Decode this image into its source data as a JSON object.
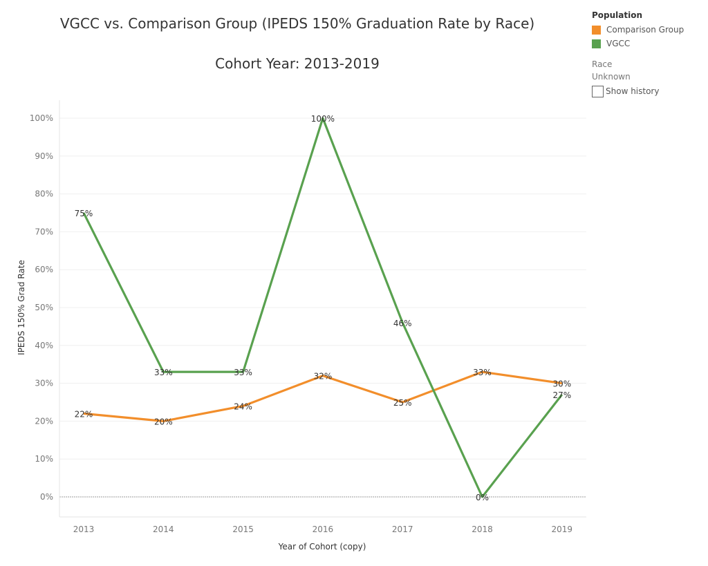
{
  "title": "VGCC vs. Comparison Group (IPEDS 150% Graduation Rate by Race)",
  "subtitle": "Cohort Year: 2013-2019",
  "legend": {
    "title": "Population",
    "items": [
      {
        "label": "Comparison Group",
        "color": "#f28e2b"
      },
      {
        "label": "VGCC",
        "color": "#59a14f"
      }
    ]
  },
  "filter": {
    "label": "Race",
    "value": "Unknown",
    "show_history_label": "Show history"
  },
  "chart_data": {
    "type": "line",
    "title": "VGCC vs. Comparison Group (IPEDS 150% Graduation Rate by Race)",
    "subtitle": "Cohort Year: 2013-2019",
    "xlabel": "Year of Cohort (copy)",
    "ylabel": "IPEDS 150%  Grad Rate",
    "categories": [
      "2013",
      "2014",
      "2015",
      "2016",
      "2017",
      "2018",
      "2019"
    ],
    "ylim": [
      0,
      100
    ],
    "yticks": [
      0,
      10,
      20,
      30,
      40,
      50,
      60,
      70,
      80,
      90,
      100
    ],
    "ytick_labels": [
      "0%",
      "10%",
      "20%",
      "30%",
      "40%",
      "50%",
      "60%",
      "70%",
      "80%",
      "90%",
      "100%"
    ],
    "grid": true,
    "legend_position": "top-right",
    "series": [
      {
        "name": "Comparison Group",
        "color": "#f28e2b",
        "values": [
          22,
          20,
          24,
          32,
          25,
          33,
          30
        ],
        "labels": [
          "22%",
          "20%",
          "24%",
          "32%",
          "25%",
          "33%",
          "30%"
        ]
      },
      {
        "name": "VGCC",
        "color": "#59a14f",
        "values": [
          75,
          33,
          33,
          100,
          46,
          0,
          27
        ],
        "labels": [
          "75%",
          "33%",
          "33%",
          "100%",
          "46%",
          "0%",
          "27%"
        ]
      }
    ]
  }
}
